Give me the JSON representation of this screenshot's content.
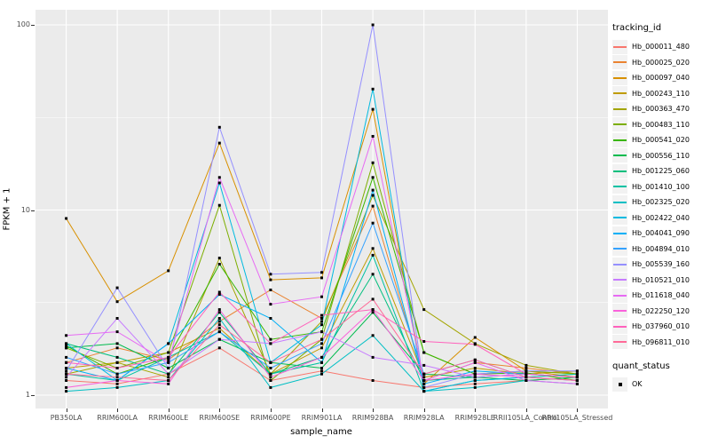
{
  "y_axis": {
    "label": "FPKM + 1",
    "ticks": [
      {
        "label": "100",
        "value": 100
      },
      {
        "label": "10",
        "value": 10
      },
      {
        "label": "1",
        "value": 1
      }
    ]
  },
  "x_axis": {
    "label": "sample_name",
    "categories": [
      "PB350LA",
      "RRIM600LA",
      "RRIM600LE",
      "RRIM600SE",
      "RRIM600PE",
      "RRIM901LA",
      "RRIM928BA",
      "RRIM928LA",
      "RRIM928LE",
      "RRII105LA_Control",
      "RRII105LA_Stressed"
    ]
  },
  "legend": {
    "tracking_title": "tracking_id",
    "quant_title": "quant_status",
    "quant_items": [
      {
        "label": "OK"
      }
    ]
  },
  "style": {
    "panel_bg": "#EBEBEB",
    "grid_color": "#FFFFFF",
    "point_color": "#000000",
    "key_bg": "#F2F2F2",
    "tick_text_color": "#4D4D4D"
  },
  "chart_data": {
    "type": "line",
    "y_log": true,
    "y_major_breaks": [
      1,
      10,
      100
    ],
    "y_minor_breaks": [
      3.162,
      31.62
    ],
    "ylim": [
      0.88,
      120
    ],
    "grid": true,
    "legend_position": "right",
    "marker": "black-square",
    "categories": [
      "PB350LA",
      "RRIM600LA",
      "RRIM600LE",
      "RRIM600SE",
      "RRIM600PE",
      "RRIM901LA",
      "RRIM928BA",
      "RRIM928LA",
      "RRIM928LE",
      "RRII105LA_Control",
      "RRII105LA_Stressed"
    ],
    "series": [
      {
        "name": "Hb_000011_480",
        "color": "#F8766D",
        "values": [
          1.2,
          1.15,
          1.3,
          1.8,
          1.2,
          1.35,
          1.2,
          1.1,
          1.15,
          1.2,
          1.25
        ]
      },
      {
        "name": "Hb_000025_020",
        "color": "#EA8331",
        "values": [
          1.5,
          1.8,
          1.55,
          2.5,
          3.7,
          2.6,
          10.5,
          1.2,
          1.5,
          1.4,
          1.3
        ]
      },
      {
        "name": "Hb_000097_040",
        "color": "#D89000",
        "values": [
          9.0,
          3.2,
          4.7,
          23.0,
          4.2,
          4.3,
          35.0,
          1.15,
          2.05,
          1.35,
          1.25
        ]
      },
      {
        "name": "Hb_000243_110",
        "color": "#C09B00",
        "values": [
          1.4,
          1.5,
          1.7,
          2.3,
          1.3,
          1.8,
          6.2,
          1.25,
          1.4,
          1.3,
          1.35
        ]
      },
      {
        "name": "Hb_000363_470",
        "color": "#A3A500",
        "values": [
          1.3,
          1.5,
          1.25,
          5.5,
          1.3,
          2.5,
          12.0,
          2.9,
          1.9,
          1.45,
          1.3
        ]
      },
      {
        "name": "Hb_000483_110",
        "color": "#7CAE00",
        "values": [
          1.8,
          1.4,
          1.7,
          10.6,
          1.2,
          2.0,
          18.0,
          1.7,
          1.3,
          1.35,
          1.3
        ]
      },
      {
        "name": "Hb_000541_020",
        "color": "#39B600",
        "values": [
          1.85,
          1.3,
          1.6,
          5.1,
          2.0,
          2.2,
          15.0,
          1.7,
          1.3,
          1.32,
          1.2
        ]
      },
      {
        "name": "Hb_000556_110",
        "color": "#00BB4E",
        "values": [
          1.8,
          1.9,
          1.4,
          2.0,
          1.5,
          1.4,
          2.8,
          1.3,
          1.25,
          1.2,
          1.25
        ]
      },
      {
        "name": "Hb_001225_060",
        "color": "#00BF7D",
        "values": [
          1.9,
          1.6,
          1.3,
          2.8,
          1.3,
          1.6,
          4.5,
          1.2,
          1.25,
          1.3,
          1.25
        ]
      },
      {
        "name": "Hb_001410_100",
        "color": "#00C1A3",
        "values": [
          1.3,
          1.2,
          1.6,
          2.2,
          1.3,
          1.5,
          5.7,
          1.05,
          1.2,
          1.25,
          1.3
        ]
      },
      {
        "name": "Hb_002325_020",
        "color": "#00BFC4",
        "values": [
          1.05,
          1.1,
          1.2,
          2.6,
          1.1,
          1.3,
          2.1,
          1.05,
          1.1,
          1.2,
          1.15
        ]
      },
      {
        "name": "Hb_002422_040",
        "color": "#00BAE0",
        "values": [
          1.9,
          1.2,
          1.9,
          14.0,
          1.5,
          2.4,
          45.0,
          1.05,
          1.2,
          1.25,
          1.2
        ]
      },
      {
        "name": "Hb_004041_090",
        "color": "#00B0F6",
        "values": [
          1.4,
          1.2,
          1.9,
          3.5,
          2.6,
          1.5,
          12.8,
          1.15,
          1.35,
          1.3,
          1.25
        ]
      },
      {
        "name": "Hb_004894_010",
        "color": "#35A2FF",
        "values": [
          1.6,
          1.3,
          1.5,
          2.2,
          1.4,
          1.9,
          8.5,
          1.3,
          1.55,
          1.25,
          1.2
        ]
      },
      {
        "name": "Hb_005539_160",
        "color": "#9590FF",
        "values": [
          1.35,
          3.8,
          1.4,
          28.0,
          4.5,
          4.6,
          100.0,
          1.1,
          1.3,
          1.35,
          1.35
        ]
      },
      {
        "name": "Hb_010521_010",
        "color": "#C77CFF",
        "values": [
          1.25,
          2.6,
          1.3,
          2.0,
          1.9,
          2.2,
          1.6,
          1.45,
          1.25,
          1.3,
          1.25
        ]
      },
      {
        "name": "Hb_011618_040",
        "color": "#E76BF3",
        "values": [
          2.1,
          2.2,
          1.5,
          15.0,
          3.1,
          3.4,
          25.0,
          1.2,
          1.5,
          1.2,
          1.15
        ]
      },
      {
        "name": "Hb_022250_120",
        "color": "#FA62DB",
        "values": [
          1.1,
          1.2,
          1.15,
          2.9,
          1.25,
          1.6,
          2.9,
          1.2,
          1.3,
          1.25,
          1.2
        ]
      },
      {
        "name": "Hb_037960_010",
        "color": "#FF62BC",
        "values": [
          1.5,
          1.4,
          1.6,
          3.6,
          1.9,
          2.7,
          2.9,
          1.95,
          1.88,
          1.3,
          1.25
        ]
      },
      {
        "name": "Hb_096811_010",
        "color": "#FF6A98",
        "values": [
          1.3,
          1.25,
          1.2,
          2.4,
          1.5,
          2.0,
          3.3,
          1.3,
          1.55,
          1.25,
          1.2
        ]
      }
    ]
  }
}
